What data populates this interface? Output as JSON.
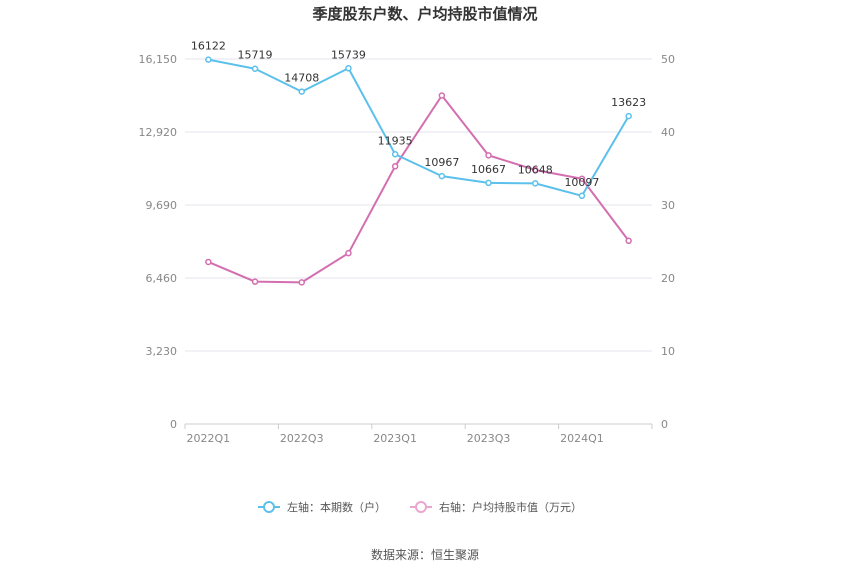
{
  "chart_data": {
    "type": "line",
    "title": "季度股东户数、户均持股市值情况",
    "x": [
      "2022Q1",
      "2022Q2",
      "2022Q3",
      "2022Q4",
      "2023Q1",
      "2023Q2",
      "2023Q3",
      "2023Q4",
      "2024Q1",
      "2024Q2"
    ],
    "x_tick_labels": [
      "2022Q1",
      "2022Q3",
      "2023Q1",
      "2023Q3",
      "2024Q1"
    ],
    "y_left": {
      "ticks": [
        "0",
        "3,230",
        "6,460",
        "9,690",
        "12,920",
        "16,150"
      ],
      "ylim": [
        0,
        16150
      ]
    },
    "y_right": {
      "ticks": [
        "0",
        "10",
        "20",
        "30",
        "40",
        "50"
      ],
      "ylim": [
        0,
        50
      ]
    },
    "grid": true,
    "legend_position": "bottom",
    "series": [
      {
        "name": "左轴：本期数（户）",
        "axis": "left",
        "color": "#5bc0eb",
        "values": [
          16122,
          15719,
          14708,
          15739,
          11935,
          10967,
          10667,
          10648,
          10097,
          13623
        ],
        "labels": [
          "16122",
          "15719",
          "14708",
          "15739",
          "11935",
          "10967",
          "10667",
          "10648",
          "10097",
          "13623"
        ]
      },
      {
        "name": "右轴：户均持股市值（万元）",
        "axis": "right",
        "color": "#d36fb0",
        "values": [
          22.2,
          19.5,
          19.4,
          23.4,
          35.3,
          45.0,
          36.8,
          34.8,
          33.6,
          25.1
        ]
      }
    ]
  },
  "source": "数据来源：恒生聚源"
}
